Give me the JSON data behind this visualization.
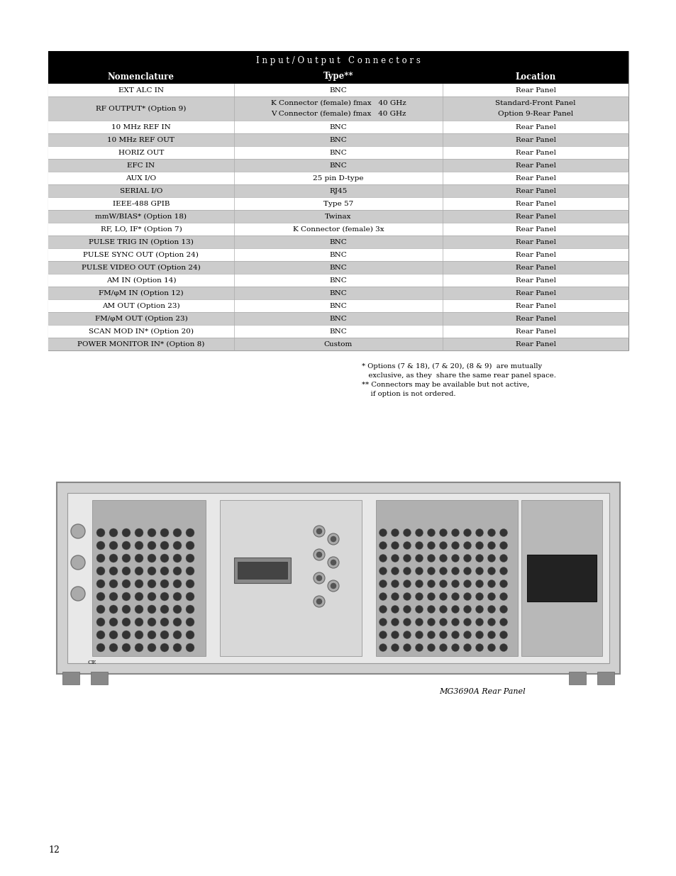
{
  "title_main": "I n p u t / O u t p u t   C o n n e c t o r s",
  "col_headers": [
    "Nomenclature",
    "Type**",
    "Location"
  ],
  "header_bg": "#000000",
  "header_fg": "#ffffff",
  "rows": [
    {
      "nomenclature": "EXT ALC IN",
      "type": "BNC",
      "location": "Rear Panel",
      "shaded": false
    },
    {
      "nomenclature": "RF OUTPUT* (Option 9)",
      "type": "K Connector (female) fmax   40 GHz\nV Connector (female) fmax   40 GHz",
      "location": "Standard-Front Panel\nOption 9-Rear Panel",
      "shaded": true
    },
    {
      "nomenclature": "10 MHz REF IN",
      "type": "BNC",
      "location": "Rear Panel",
      "shaded": false
    },
    {
      "nomenclature": "10 MHz REF OUT",
      "type": "BNC",
      "location": "Rear Panel",
      "shaded": true
    },
    {
      "nomenclature": "HORIZ OUT",
      "type": "BNC",
      "location": "Rear Panel",
      "shaded": false
    },
    {
      "nomenclature": "EFC IN",
      "type": "BNC",
      "location": "Rear Panel",
      "shaded": true
    },
    {
      "nomenclature": "AUX I/O",
      "type": "25 pin D-type",
      "location": "Rear Panel",
      "shaded": false
    },
    {
      "nomenclature": "SERIAL I/O",
      "type": "RJ45",
      "location": "Rear Panel",
      "shaded": true
    },
    {
      "nomenclature": "IEEE-488 GPIB",
      "type": "Type 57",
      "location": "Rear Panel",
      "shaded": false
    },
    {
      "nomenclature": "mmW/BIAS* (Option 18)",
      "type": "Twinax",
      "location": "Rear Panel",
      "shaded": true
    },
    {
      "nomenclature": "RF, LO, IF* (Option 7)",
      "type": "K Connector (female) 3x",
      "location": "Rear Panel",
      "shaded": false
    },
    {
      "nomenclature": "PULSE TRIG IN (Option 13)",
      "type": "BNC",
      "location": "Rear Panel",
      "shaded": true
    },
    {
      "nomenclature": "PULSE SYNC OUT (Option 24)",
      "type": "BNC",
      "location": "Rear Panel",
      "shaded": false
    },
    {
      "nomenclature": "PULSE VIDEO OUT (Option 24)",
      "type": "BNC",
      "location": "Rear Panel",
      "shaded": true
    },
    {
      "nomenclature": "AM IN (Option 14)",
      "type": "BNC",
      "location": "Rear Panel",
      "shaded": false
    },
    {
      "nomenclature": "FM/φM IN (Option 12)",
      "type": "BNC",
      "location": "Rear Panel",
      "shaded": true
    },
    {
      "nomenclature": "AM OUT (Option 23)",
      "type": "BNC",
      "location": "Rear Panel",
      "shaded": false
    },
    {
      "nomenclature": "FM/φM OUT (Option 23)",
      "type": "BNC",
      "location": "Rear Panel",
      "shaded": true
    },
    {
      "nomenclature": "SCAN MOD IN* (Option 20)",
      "type": "BNC",
      "location": "Rear Panel",
      "shaded": false
    },
    {
      "nomenclature": "POWER MONITOR IN* (Option 8)",
      "type": "Custom",
      "location": "Rear Panel",
      "shaded": true
    }
  ],
  "footnote1": "* Options (7 & 18), (7 & 20), (8 & 9)  are mutually",
  "footnote2": "   exclusive, as they  share the same rear panel space.",
  "footnote3": "** Connectors may be available but not active,",
  "footnote4": "    if option is not ordered.",
  "caption": "MG3690A Rear Panel",
  "shaded_color": "#cccccc",
  "unshaded_color": "#ffffff",
  "page_number": "12",
  "bg_color": "#ffffff"
}
